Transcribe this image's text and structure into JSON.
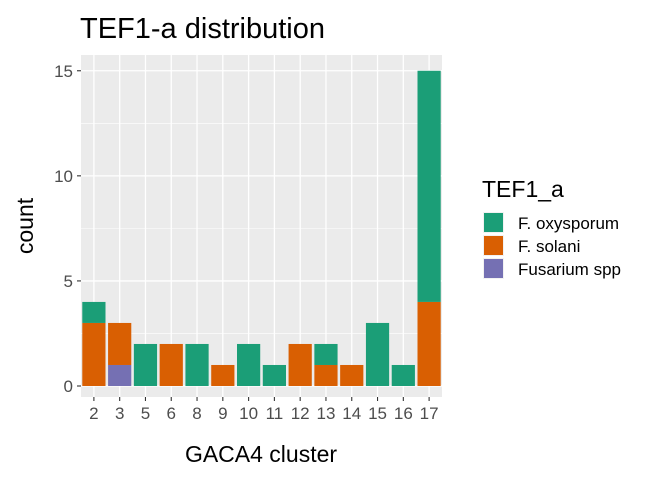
{
  "chart_data": {
    "type": "bar",
    "stacked": true,
    "title": "TEF1-a distribution",
    "xlabel": "GACA4 cluster",
    "ylabel": "count",
    "ylim": [
      0,
      15.75
    ],
    "yticks": [
      0,
      5,
      10,
      15
    ],
    "grid": true,
    "categories": [
      "2",
      "3",
      "5",
      "6",
      "8",
      "9",
      "10",
      "11",
      "12",
      "13",
      "14",
      "15",
      "16",
      "17"
    ],
    "series": [
      {
        "name": "F. oxysporum",
        "color": "#1b9e77",
        "values": [
          1,
          0,
          2,
          0,
          2,
          0,
          2,
          1,
          0,
          1,
          0,
          3,
          1,
          11
        ]
      },
      {
        "name": "F. solani",
        "color": "#d95f02",
        "values": [
          3,
          2,
          0,
          2,
          0,
          1,
          0,
          0,
          2,
          1,
          1,
          0,
          0,
          4
        ]
      },
      {
        "name": "Fusarium spp",
        "color": "#7570b3",
        "values": [
          0,
          1,
          0,
          0,
          0,
          0,
          0,
          0,
          0,
          0,
          0,
          0,
          0,
          0
        ]
      }
    ],
    "stack_order_bottom_to_top": [
      "Fusarium spp",
      "F. solani",
      "F. oxysporum"
    ],
    "legend": {
      "title": "TEF1_a",
      "position": "right"
    }
  }
}
